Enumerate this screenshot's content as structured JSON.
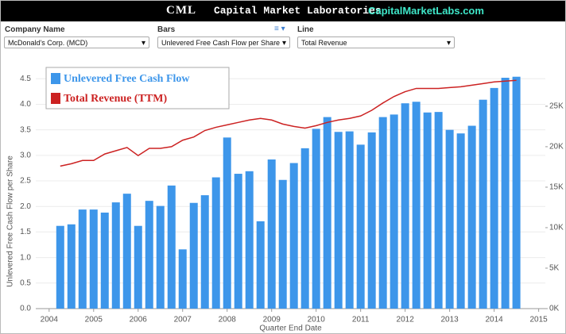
{
  "header": {
    "logo": "CML",
    "title": "Capital Market Laboratories",
    "site": "CapitalMarketLabs.com"
  },
  "controls": [
    {
      "label": "Company Name",
      "value": "McDonald's Corp. (MCD)"
    },
    {
      "label": "Bars",
      "value": "Unlevered Free Cash Flow per Share"
    },
    {
      "label": "Line",
      "value": "Total Revenue"
    }
  ],
  "chart_data": {
    "type": "bar",
    "xlabel": "Quarter End Date",
    "ylabel": "Unlevered Free Cash Flow per Share",
    "x": [
      2004.25,
      2004.5,
      2004.75,
      2005,
      2005.25,
      2005.5,
      2005.75,
      2006,
      2006.25,
      2006.5,
      2006.75,
      2007,
      2007.25,
      2007.5,
      2007.75,
      2008,
      2008.25,
      2008.5,
      2008.75,
      2009,
      2009.25,
      2009.5,
      2009.75,
      2010,
      2010.25,
      2010.5,
      2010.75,
      2011,
      2011.25,
      2011.5,
      2011.75,
      2012,
      2012.25,
      2012.5,
      2012.75,
      2013,
      2013.25,
      2013.5,
      2013.75,
      2014,
      2014.25,
      2014.5
    ],
    "series": [
      {
        "name": "Unlevered Free Cash Flow",
        "type": "bar",
        "color": "#3d96ea",
        "values": [
          1.62,
          1.65,
          1.94,
          1.94,
          1.88,
          2.08,
          2.25,
          1.62,
          2.11,
          2.01,
          2.41,
          1.16,
          2.07,
          2.22,
          2.57,
          3.35,
          2.64,
          2.69,
          1.71,
          2.92,
          2.52,
          2.85,
          3.14,
          3.52,
          3.75,
          3.46,
          3.47,
          3.21,
          3.45,
          3.75,
          3.8,
          4.02,
          4.05,
          3.84,
          3.85,
          3.5,
          3.43,
          3.58,
          4.09,
          4.32,
          4.52,
          4.54
        ]
      },
      {
        "name": "Total Revenue (TTM)",
        "type": "line",
        "axis": "y2",
        "color": "#cc2222",
        "values": [
          17600,
          17900,
          18300,
          18300,
          19100,
          19500,
          19900,
          18900,
          19800,
          19800,
          20000,
          20800,
          21200,
          22000,
          22400,
          22700,
          23000,
          23300,
          23500,
          23300,
          22800,
          22500,
          22300,
          22600,
          23000,
          23300,
          23500,
          23800,
          24500,
          25400,
          26200,
          26800,
          27200,
          27200,
          27200,
          27300,
          27400,
          27600,
          27800,
          28000,
          28100,
          28200
        ]
      }
    ],
    "xlim": [
      2003.7,
      2015.15
    ],
    "xticks": [
      2004,
      2005,
      2006,
      2007,
      2008,
      2009,
      2010,
      2011,
      2012,
      2013,
      2014,
      2015
    ],
    "ylim": [
      0,
      4.66
    ],
    "yticks": [
      {
        "value": 0,
        "label": "0.0"
      },
      0.5,
      {
        "value": 1,
        "label": "1.0"
      },
      1.5,
      {
        "value": 2,
        "label": "2.0"
      },
      2.5,
      {
        "value": 3,
        "label": "3.0"
      },
      3.5,
      {
        "value": 4,
        "label": "4.0"
      },
      4.5
    ],
    "y2lim": [
      0,
      29400
    ],
    "y2ticks": [
      {
        "value": 0,
        "label": "0K"
      },
      {
        "value": 5000,
        "label": "5K"
      },
      {
        "value": 10000,
        "label": "10K"
      },
      {
        "value": 15000,
        "label": "15K"
      },
      {
        "value": 20000,
        "label": "20K"
      },
      {
        "value": 25000,
        "label": "25K"
      }
    ],
    "grid": true,
    "legend": "top-left"
  }
}
